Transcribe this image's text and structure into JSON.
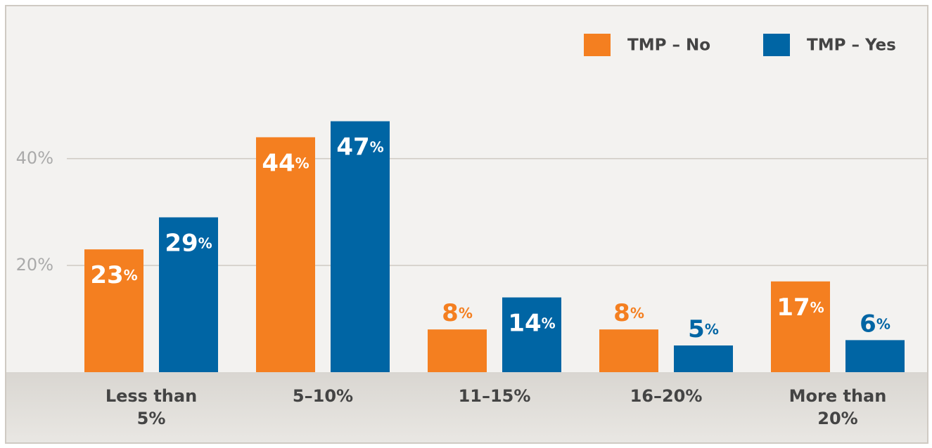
{
  "chart_data": {
    "type": "bar",
    "categories": [
      "Less than 5%",
      "5–10%",
      "11–15%",
      "16–20%",
      "More than 20%"
    ],
    "series": [
      {
        "name": "TMP – No",
        "color": "#f47f20",
        "values": [
          23,
          44,
          8,
          8,
          17
        ],
        "value_labels": [
          "23%",
          "44%",
          "8%",
          "8%",
          "17%"
        ]
      },
      {
        "name": "TMP – Yes",
        "color": "#0065a4",
        "values": [
          29,
          47,
          14,
          5,
          6
        ],
        "value_labels": [
          "29%",
          "47%",
          "14%",
          "5%",
          "6%"
        ]
      }
    ],
    "ylim": [
      0,
      68
    ],
    "yticks": [
      {
        "value": 20,
        "label": "20%"
      },
      {
        "value": 40,
        "label": "40%"
      }
    ],
    "grid": true,
    "legend": "top-right"
  }
}
